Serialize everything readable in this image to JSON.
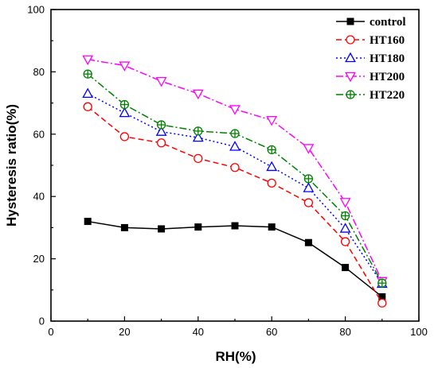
{
  "chart_data": {
    "type": "line",
    "title": "",
    "xlabel": "RH(%)",
    "ylabel": "Hysteresis ratio(%)",
    "xlim": [
      0,
      100
    ],
    "ylim": [
      0,
      100
    ],
    "xticks": [
      0,
      20,
      40,
      60,
      80,
      100
    ],
    "yticks": [
      0,
      20,
      40,
      60,
      80,
      100
    ],
    "grid": false,
    "legend_position": "top-right",
    "x": [
      10,
      20,
      30,
      40,
      50,
      60,
      70,
      80,
      90
    ],
    "series": [
      {
        "name": "control",
        "color": "#000000",
        "marker": "square-filled",
        "dash": "solid",
        "values": [
          32.0,
          30.0,
          29.6,
          30.2,
          30.6,
          30.2,
          25.2,
          17.2,
          7.8
        ]
      },
      {
        "name": "HT160",
        "color": "#ff0000",
        "marker": "circle-open",
        "dash": "dashed",
        "values": [
          68.8,
          59.2,
          57.2,
          52.2,
          49.3,
          44.3,
          38.0,
          25.5,
          5.8
        ]
      },
      {
        "name": "HT180",
        "color": "#0000ff",
        "marker": "triangle-up-open",
        "dash": "dotted",
        "values": [
          73.0,
          66.8,
          60.8,
          58.9,
          56.0,
          49.5,
          42.7,
          29.7,
          12.0
        ]
      },
      {
        "name": "HT200",
        "color": "#ff00ff",
        "marker": "triangle-down-open",
        "dash": "dash-dot",
        "values": [
          84.0,
          82.0,
          77.0,
          73.0,
          68.0,
          64.5,
          55.5,
          38.2,
          12.8
        ]
      },
      {
        "name": "HT220",
        "color": "#008000",
        "marker": "circle-plus-open",
        "dash": "dash-dot",
        "values": [
          79.3,
          69.5,
          63.0,
          61.0,
          60.2,
          55.0,
          45.7,
          33.8,
          12.2
        ]
      }
    ]
  }
}
